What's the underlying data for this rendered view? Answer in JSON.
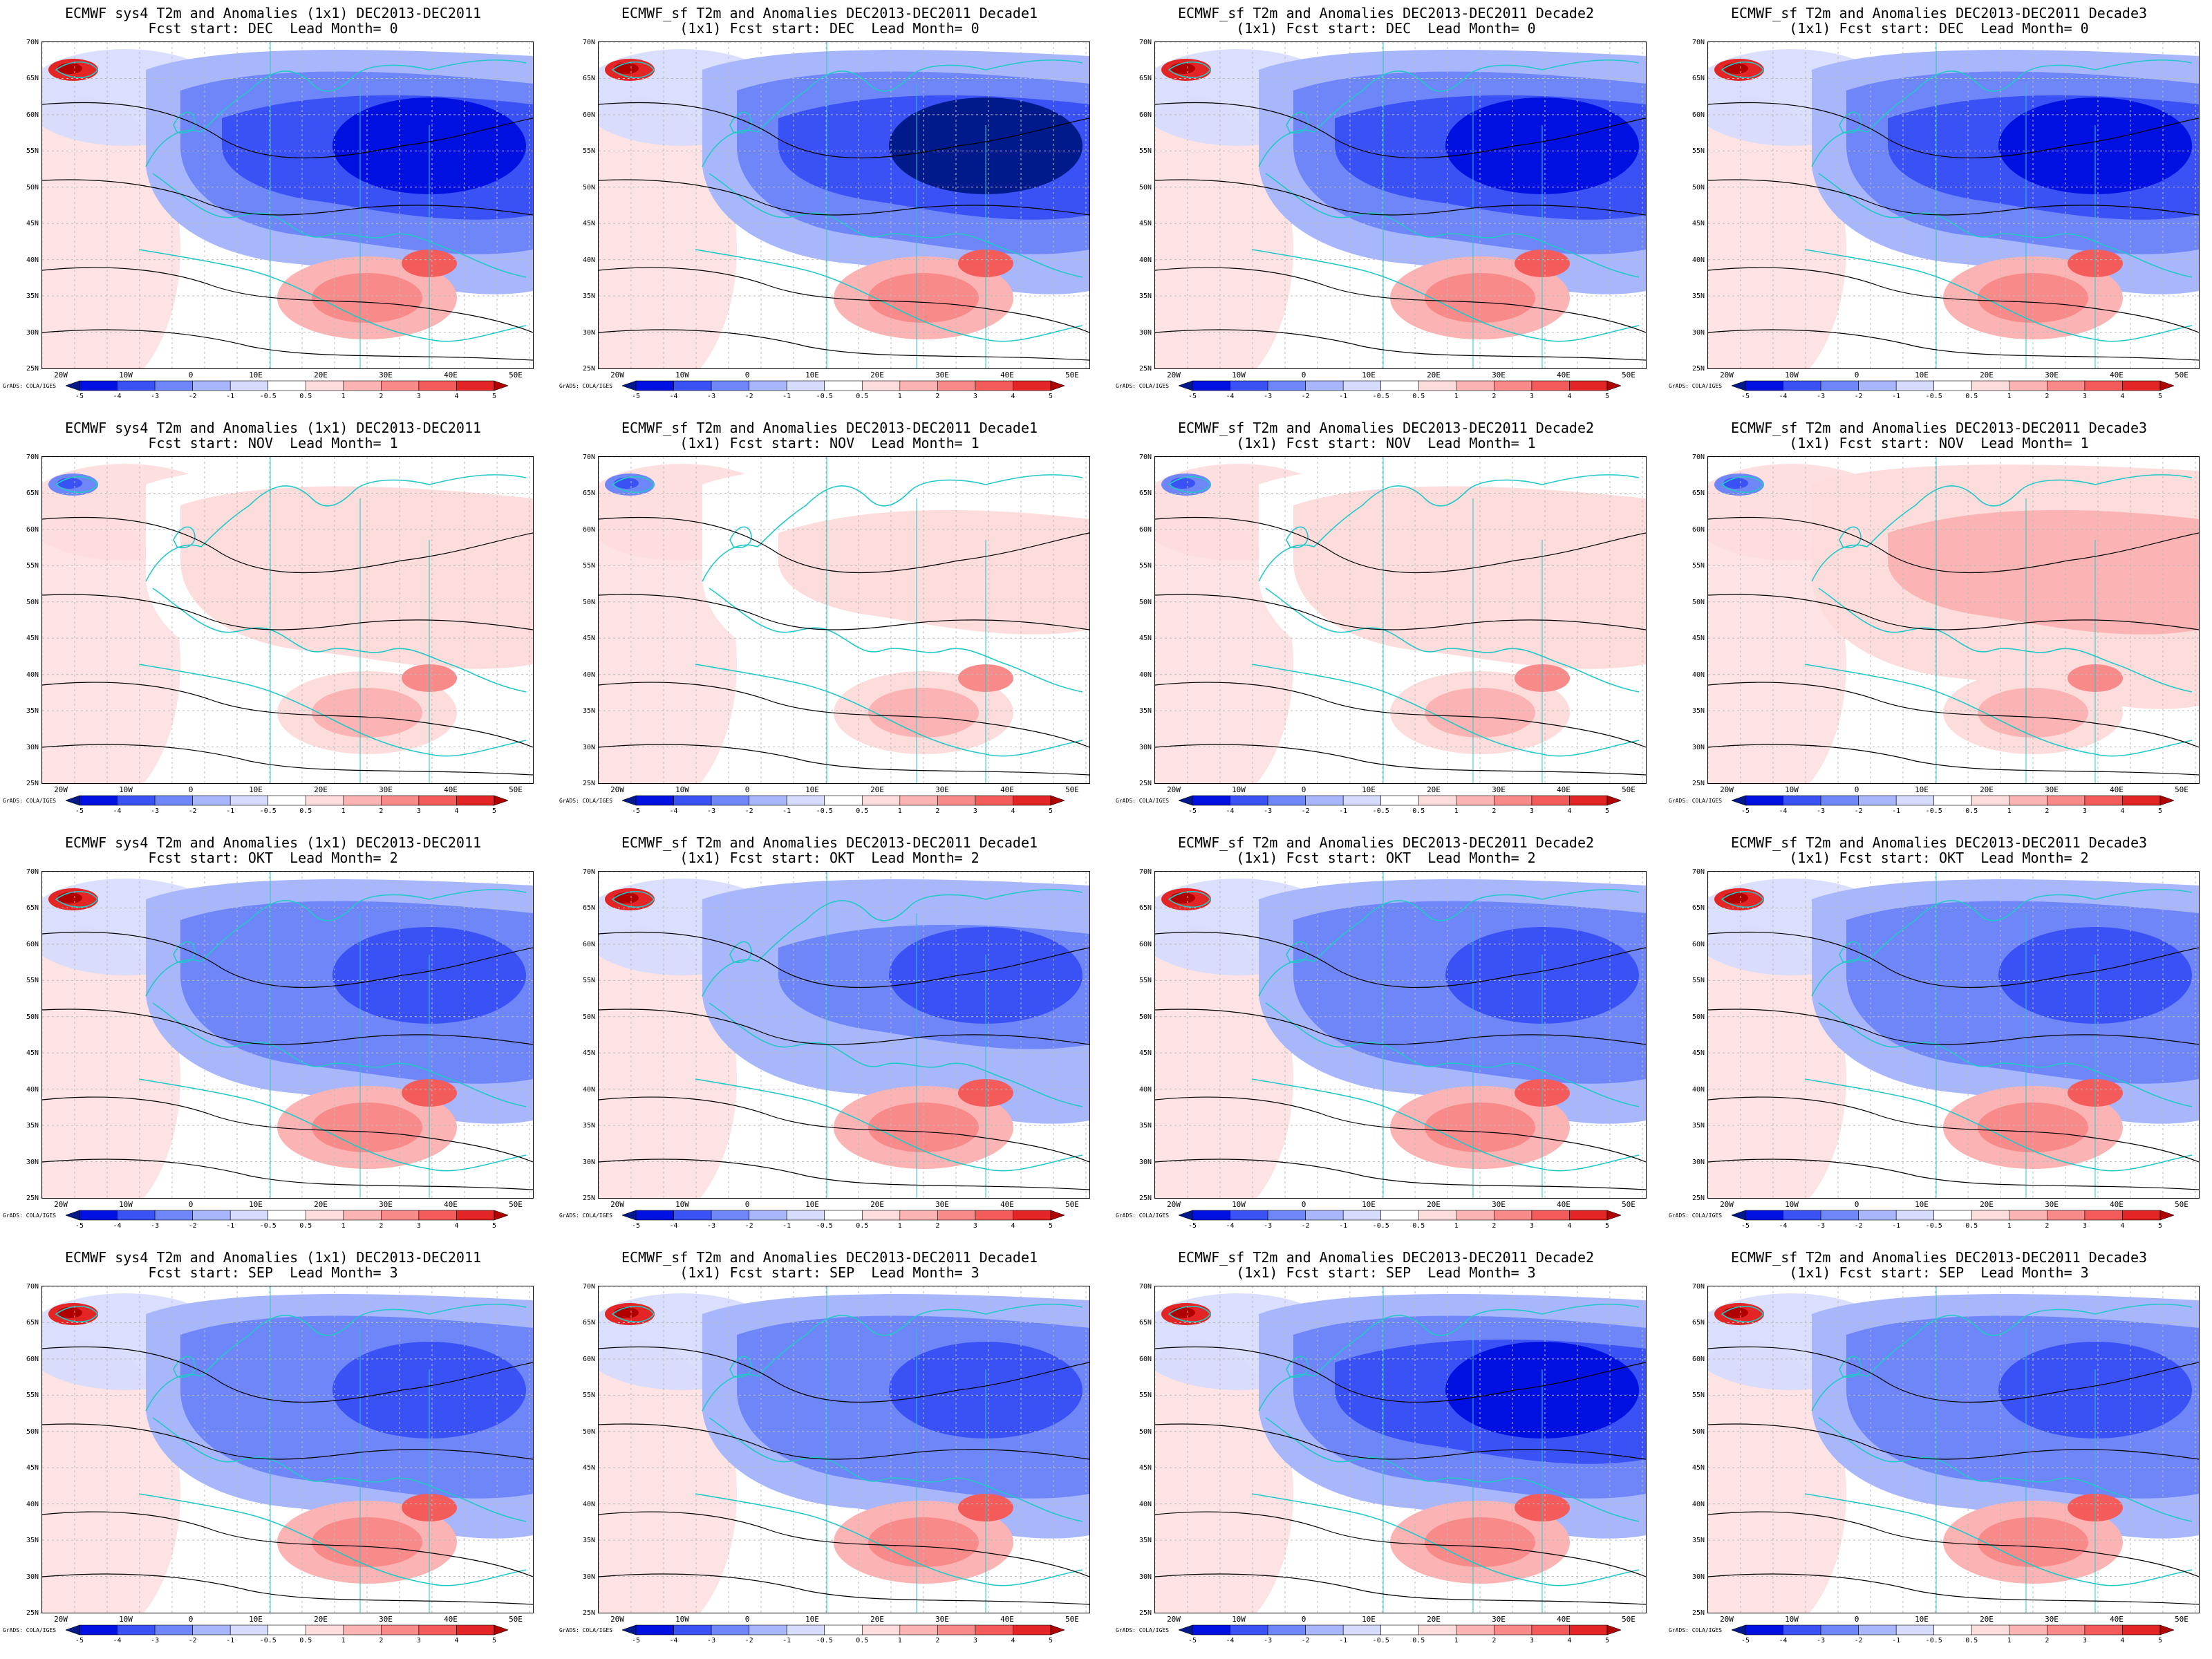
{
  "colors": {
    "neg5": "#001a8c",
    "neg4": "#0010e0",
    "neg3": "#3a52f5",
    "neg2": "#6f86f8",
    "neg1": "#a8b6fb",
    "neg05": "#d5dcfd",
    "zero": "#ffffff",
    "pos05": "#fddcdc",
    "pos1": "#fbb3b3",
    "pos2": "#f88a8a",
    "pos3": "#f45c5c",
    "pos4": "#e42525",
    "pos5": "#b00000",
    "coast": "#22c8c8",
    "contour": "#000000"
  },
  "lat_labels": [
    "70N",
    "65N",
    "60N",
    "55N",
    "50N",
    "45N",
    "40N",
    "35N",
    "30N",
    "25N"
  ],
  "lon_labels": [
    "20W",
    "10W",
    "0",
    "10E",
    "20E",
    "30E",
    "40E",
    "50E"
  ],
  "colorbar_labels": [
    "-5",
    "-4",
    "-3",
    "-2",
    "-1",
    "-0.5",
    "0.5",
    "1",
    "2",
    "3",
    "4",
    "5"
  ],
  "credit": "GrADS: COLA/IGES",
  "panels": [
    {
      "title1": "ECMWF sys4 T2m and Anomalies (1x1) DEC2013-DEC2011",
      "title2": "Fcst start: DEC  Lead Month= 0",
      "anom": -3.2
    },
    {
      "title1": "ECMWF_sf T2m and Anomalies DEC2013-DEC2011 Decade1",
      "title2": "(1x1) Fcst start: DEC  Lead Month= 0",
      "anom": -3.8
    },
    {
      "title1": "ECMWF_sf T2m and Anomalies DEC2013-DEC2011 Decade2",
      "title2": "(1x1) Fcst start: DEC  Lead Month= 0",
      "anom": -3.0
    },
    {
      "title1": "ECMWF_sf T2m and Anomalies DEC2013-DEC2011 Decade3",
      "title2": "(1x1) Fcst start: DEC  Lead Month= 0",
      "anom": -3.2
    },
    {
      "title1": "ECMWF sys4 T2m and Anomalies (1x1) DEC2013-DEC2011",
      "title2": "Fcst start: NOV  Lead Month= 1",
      "anom": 0.6
    },
    {
      "title1": "ECMWF_sf T2m and Anomalies DEC2013-DEC2011 Decade1",
      "title2": "(1x1) Fcst start: NOV  Lead Month= 1",
      "anom": 0.3
    },
    {
      "title1": "ECMWF_sf T2m and Anomalies DEC2013-DEC2011 Decade2",
      "title2": "(1x1) Fcst start: NOV  Lead Month= 1",
      "anom": 0.5
    },
    {
      "title1": "ECMWF_sf T2m and Anomalies DEC2013-DEC2011 Decade3",
      "title2": "(1x1) Fcst start: NOV  Lead Month= 1",
      "anom": 1.0
    },
    {
      "title1": "ECMWF sys4 T2m and Anomalies (1x1) DEC2013-DEC2011",
      "title2": "Fcst start: OKT  Lead Month= 2",
      "anom": -2.6
    },
    {
      "title1": "ECMWF_sf T2m and Anomalies DEC2013-DEC2011 Decade1",
      "title2": "(1x1) Fcst start: OKT  Lead Month= 2",
      "anom": -2.4
    },
    {
      "title1": "ECMWF_sf T2m and Anomalies DEC2013-DEC2011 Decade2",
      "title2": "(1x1) Fcst start: OKT  Lead Month= 2",
      "anom": -2.5
    },
    {
      "title1": "ECMWF_sf T2m and Anomalies DEC2013-DEC2011 Decade3",
      "title2": "(1x1) Fcst start: OKT  Lead Month= 2",
      "anom": -2.7
    },
    {
      "title1": "ECMWF sys4 T2m and Anomalies (1x1) DEC2013-DEC2011",
      "title2": "Fcst start: SEP  Lead Month= 3",
      "anom": -2.8
    },
    {
      "title1": "ECMWF_sf T2m and Anomalies DEC2013-DEC2011 Decade1",
      "title2": "(1x1) Fcst start: SEP  Lead Month= 3",
      "anom": -2.6
    },
    {
      "title1": "ECMWF_sf T2m and Anomalies DEC2013-DEC2011 Decade2",
      "title2": "(1x1) Fcst start: SEP  Lead Month= 3",
      "anom": -3.0
    },
    {
      "title1": "ECMWF_sf T2m and Anomalies DEC2013-DEC2011 Decade3",
      "title2": "(1x1) Fcst start: SEP  Lead Month= 3",
      "anom": -2.8
    }
  ]
}
